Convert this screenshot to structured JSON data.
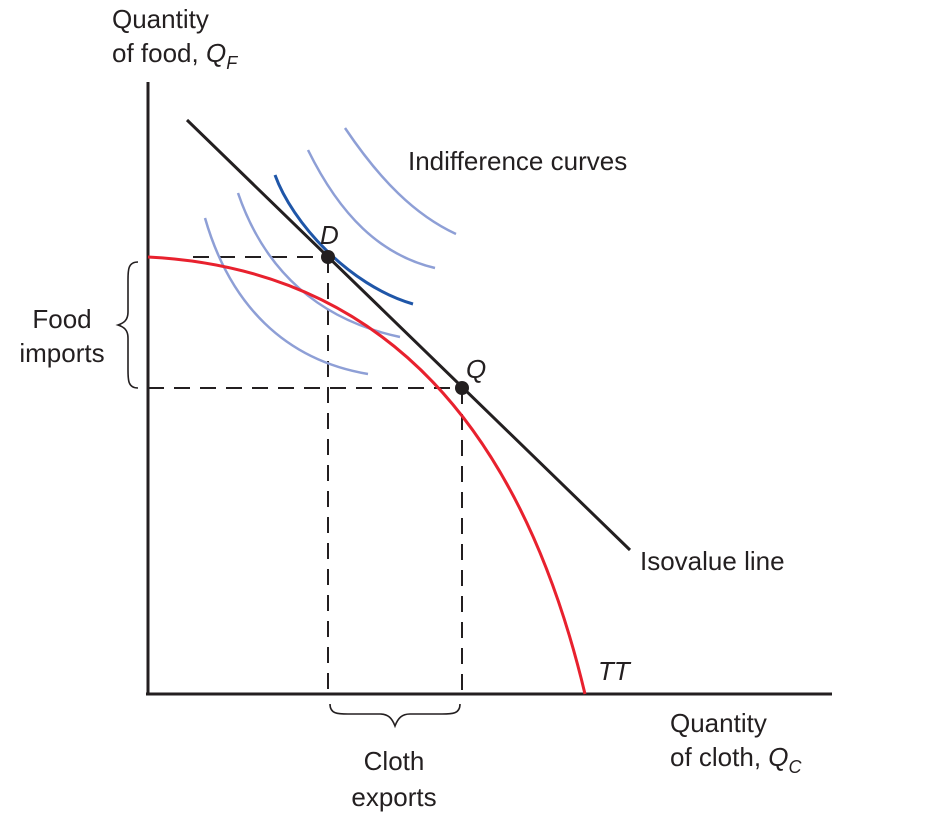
{
  "axes": {
    "y_label_line1": "Quantity",
    "y_label_line2": "of food, ",
    "y_symbol": "Q",
    "y_subscript": "F",
    "x_label_line1": "Quantity",
    "x_label_line2": "of cloth, ",
    "x_symbol": "Q",
    "x_subscript": "C"
  },
  "labels": {
    "indifference_curves": "Indifference curves",
    "isovalue_line": "Isovalue line",
    "tt_curve": "TT",
    "point_d": "D",
    "point_q": "Q",
    "food_imports_line1": "Food",
    "food_imports_line2": "imports",
    "cloth_exports_line1": "Cloth",
    "cloth_exports_line2": "exports"
  },
  "colors": {
    "axis": "#231f20",
    "tt_curve": "#e8212e",
    "isovalue_line": "#231f20",
    "tangent_indifference_curve": "#1f56a8",
    "other_indifference_curves": "#8e9fd6",
    "dashed_guides": "#231f20"
  }
}
